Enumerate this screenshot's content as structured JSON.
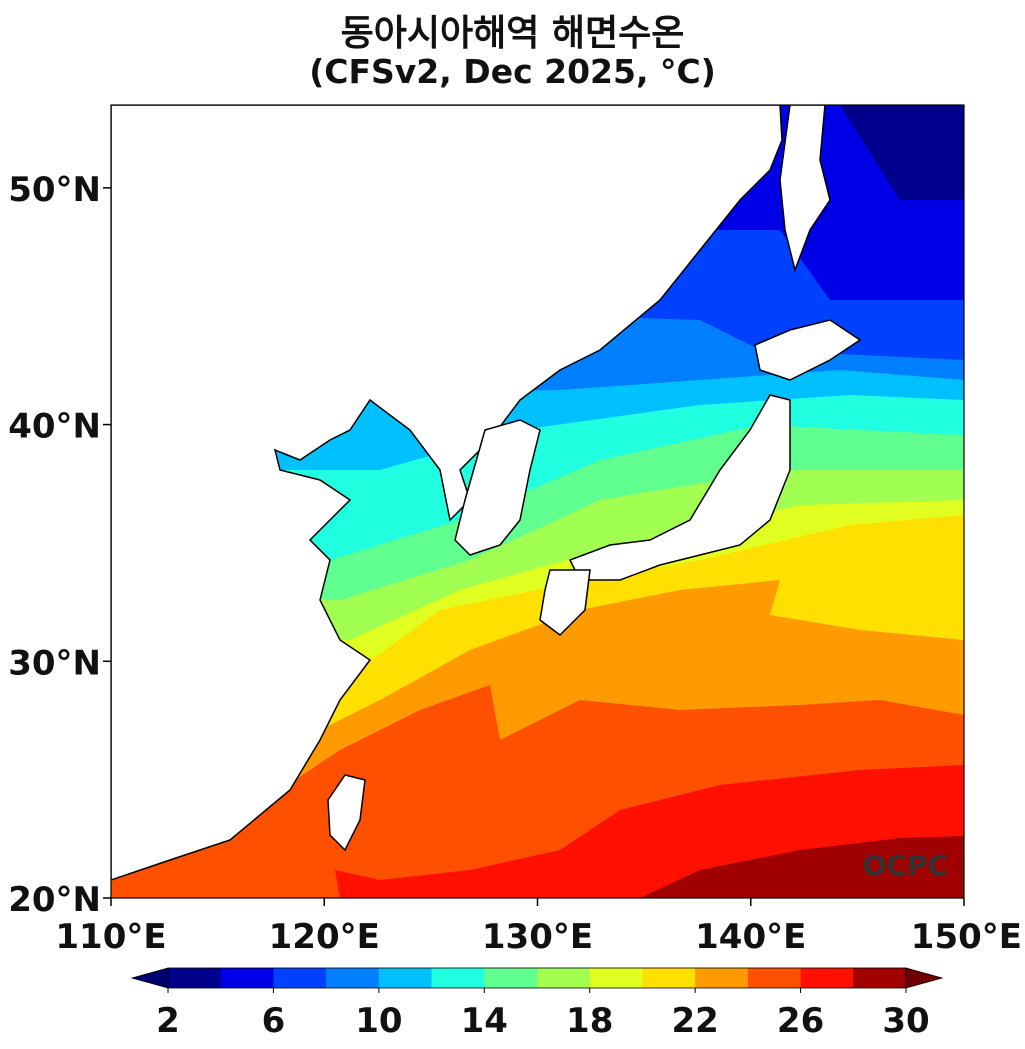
{
  "title_line1": "동아시아해역 해면수온",
  "title_line2": "(CFSv2, Dec 2025, °C)",
  "watermark": "OCPC",
  "map": {
    "lon_range": [
      110,
      150
    ],
    "lat_range": [
      20,
      53.5
    ],
    "lon_ticks": [
      {
        "value": 110,
        "label": "110°E"
      },
      {
        "value": 120,
        "label": "120°E"
      },
      {
        "value": 130,
        "label": "130°E"
      },
      {
        "value": 140,
        "label": "140°E"
      },
      {
        "value": 150,
        "label": "150°E"
      }
    ],
    "lat_ticks": [
      {
        "value": 20,
        "label": "20°N"
      },
      {
        "value": 30,
        "label": "30°N"
      },
      {
        "value": 40,
        "label": "40°N"
      },
      {
        "value": 50,
        "label": "50°N"
      }
    ]
  },
  "colorbar": {
    "levels": [
      2,
      4,
      6,
      8,
      10,
      12,
      14,
      16,
      18,
      20,
      22,
      24,
      26,
      28,
      30
    ],
    "colors": [
      "#00008c",
      "#0000e6",
      "#0040ff",
      "#0080ff",
      "#00c0ff",
      "#20ffe0",
      "#60ff90",
      "#a0ff50",
      "#e0ff20",
      "#ffe000",
      "#ff9a00",
      "#ff5000",
      "#ff1000",
      "#a00000"
    ],
    "under_color": "#000070",
    "over_color": "#700000",
    "tick_labels": [
      "2",
      "6",
      "10",
      "14",
      "18",
      "22",
      "26",
      "30"
    ]
  }
}
